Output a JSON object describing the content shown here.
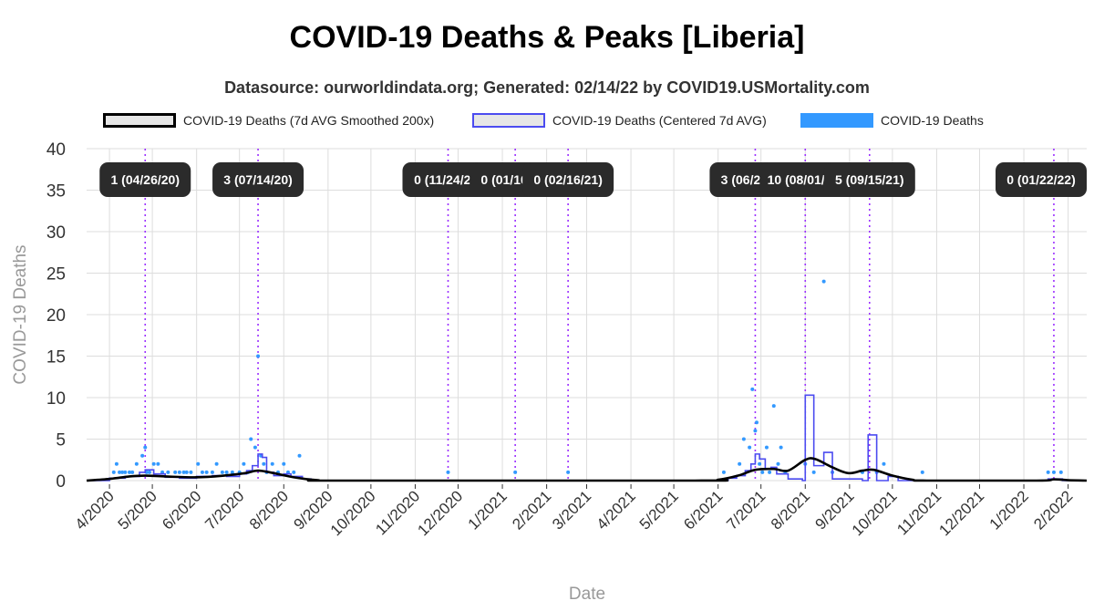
{
  "title": "COVID-19 Deaths & Peaks [Liberia]",
  "subtitle": "Datasource: ourworldindata.org; Generated: 02/14/22 by COVID19.USMortality.com",
  "legend": [
    {
      "label": "COVID-19 Deaths (7d AVG Smoothed 200x)",
      "swatch_fill": "#e6e6e6",
      "swatch_stroke": "#000000"
    },
    {
      "label": "COVID-19 Deaths (Centered 7d AVG)",
      "swatch_fill": "#e6e6e6",
      "swatch_stroke": "#4b4bf0"
    },
    {
      "label": "COVID-19 Deaths",
      "swatch_fill": "#3399ff",
      "swatch_stroke": "#3399ff"
    }
  ],
  "colors": {
    "smoothed": "#000000",
    "centered": "#4b4bf0",
    "deaths": "#3399ff",
    "peak_line": "#9b30ff",
    "grid": "#dddddd",
    "peak_label_bg": "#2b2b2b",
    "peak_label_text": "#ffffff"
  },
  "chart_data": {
    "type": "line",
    "title": "COVID-19 Deaths & Peaks [Liberia]",
    "xlabel": "Date",
    "ylabel": "COVID-19 Deaths",
    "x_range": [
      "2020-03-16",
      "2022-02-14"
    ],
    "ylim": [
      0,
      40
    ],
    "y_ticks": [
      0,
      5,
      10,
      15,
      20,
      25,
      30,
      35,
      40
    ],
    "x_ticks": [
      {
        "date": "2020-04-01",
        "label": "4/2020"
      },
      {
        "date": "2020-05-01",
        "label": "5/2020"
      },
      {
        "date": "2020-06-01",
        "label": "6/2020"
      },
      {
        "date": "2020-07-01",
        "label": "7/2020"
      },
      {
        "date": "2020-08-01",
        "label": "8/2020"
      },
      {
        "date": "2020-09-01",
        "label": "9/2020"
      },
      {
        "date": "2020-10-01",
        "label": "10/2020"
      },
      {
        "date": "2020-11-01",
        "label": "11/2020"
      },
      {
        "date": "2020-12-01",
        "label": "12/2020"
      },
      {
        "date": "2021-01-01",
        "label": "1/2021"
      },
      {
        "date": "2021-02-01",
        "label": "2/2021"
      },
      {
        "date": "2021-03-01",
        "label": "3/2021"
      },
      {
        "date": "2021-04-01",
        "label": "4/2021"
      },
      {
        "date": "2021-05-01",
        "label": "5/2021"
      },
      {
        "date": "2021-06-01",
        "label": "6/2021"
      },
      {
        "date": "2021-07-01",
        "label": "7/2021"
      },
      {
        "date": "2021-08-01",
        "label": "8/2021"
      },
      {
        "date": "2021-09-01",
        "label": "9/2021"
      },
      {
        "date": "2021-10-01",
        "label": "10/2021"
      },
      {
        "date": "2021-11-01",
        "label": "11/2021"
      },
      {
        "date": "2021-12-01",
        "label": "12/2021"
      },
      {
        "date": "2022-01-01",
        "label": "1/2022"
      },
      {
        "date": "2022-02-01",
        "label": "2/2022"
      }
    ],
    "grid": true,
    "legend_position": "top",
    "peaks": [
      {
        "date": "2020-04-26",
        "label": "1 (04/26/20)"
      },
      {
        "date": "2020-07-14",
        "label": "3 (07/14/20)"
      },
      {
        "date": "2020-11-24",
        "label": "0 (11/24/20)"
      },
      {
        "date": "2021-01-10",
        "label": "0 (01/10/21)"
      },
      {
        "date": "2021-02-16",
        "label": "0 (02/16/21)"
      },
      {
        "date": "2021-06-27",
        "label": "3 (06/27/21)"
      },
      {
        "date": "2021-08-01",
        "label": "10 (08/01/21)"
      },
      {
        "date": "2021-09-15",
        "label": "5 (09/15/21)"
      },
      {
        "date": "2022-01-22",
        "label": "0 (01/22/22)"
      }
    ],
    "series": [
      {
        "name": "COVID-19 Deaths",
        "style": "points",
        "points": [
          [
            "2020-04-04",
            1
          ],
          [
            "2020-04-06",
            2
          ],
          [
            "2020-04-08",
            1
          ],
          [
            "2020-04-10",
            1
          ],
          [
            "2020-04-12",
            1
          ],
          [
            "2020-04-15",
            1
          ],
          [
            "2020-04-17",
            1
          ],
          [
            "2020-04-20",
            2
          ],
          [
            "2020-04-24",
            3
          ],
          [
            "2020-04-26",
            4
          ],
          [
            "2020-04-27",
            1
          ],
          [
            "2020-04-29",
            1
          ],
          [
            "2020-05-02",
            2
          ],
          [
            "2020-05-05",
            2
          ],
          [
            "2020-05-08",
            1
          ],
          [
            "2020-05-12",
            1
          ],
          [
            "2020-05-17",
            1
          ],
          [
            "2020-05-20",
            1
          ],
          [
            "2020-05-23",
            1
          ],
          [
            "2020-05-25",
            1
          ],
          [
            "2020-05-28",
            1
          ],
          [
            "2020-06-02",
            2
          ],
          [
            "2020-06-05",
            1
          ],
          [
            "2020-06-08",
            1
          ],
          [
            "2020-06-12",
            1
          ],
          [
            "2020-06-15",
            2
          ],
          [
            "2020-06-19",
            1
          ],
          [
            "2020-06-22",
            1
          ],
          [
            "2020-06-26",
            1
          ],
          [
            "2020-07-01",
            1
          ],
          [
            "2020-07-04",
            2
          ],
          [
            "2020-07-07",
            1
          ],
          [
            "2020-07-09",
            5
          ],
          [
            "2020-07-12",
            4
          ],
          [
            "2020-07-14",
            15
          ],
          [
            "2020-07-16",
            3
          ],
          [
            "2020-07-18",
            2
          ],
          [
            "2020-07-20",
            1
          ],
          [
            "2020-07-24",
            2
          ],
          [
            "2020-07-28",
            1
          ],
          [
            "2020-08-01",
            2
          ],
          [
            "2020-08-04",
            1
          ],
          [
            "2020-08-08",
            1
          ],
          [
            "2020-08-12",
            3
          ],
          [
            "2020-11-24",
            1
          ],
          [
            "2021-01-10",
            1
          ],
          [
            "2021-02-16",
            1
          ],
          [
            "2021-06-05",
            1
          ],
          [
            "2021-06-16",
            2
          ],
          [
            "2021-06-19",
            5
          ],
          [
            "2021-06-23",
            4
          ],
          [
            "2021-06-25",
            11
          ],
          [
            "2021-06-27",
            6
          ],
          [
            "2021-06-28",
            7
          ],
          [
            "2021-06-30",
            2
          ],
          [
            "2021-07-02",
            1
          ],
          [
            "2021-07-05",
            4
          ],
          [
            "2021-07-07",
            1
          ],
          [
            "2021-07-10",
            9
          ],
          [
            "2021-07-13",
            2
          ],
          [
            "2021-07-15",
            4
          ],
          [
            "2021-07-18",
            1
          ],
          [
            "2021-08-01",
            2
          ],
          [
            "2021-08-07",
            1
          ],
          [
            "2021-08-14",
            24
          ],
          [
            "2021-08-20",
            1
          ],
          [
            "2021-09-10",
            1
          ],
          [
            "2021-09-20",
            1
          ],
          [
            "2021-09-25",
            2
          ],
          [
            "2021-10-22",
            1
          ],
          [
            "2022-01-18",
            1
          ],
          [
            "2022-01-22",
            1
          ],
          [
            "2022-01-27",
            1
          ]
        ]
      },
      {
        "name": "COVID-19 Deaths (Centered 7d AVG)",
        "style": "step",
        "points": [
          [
            "2020-03-16",
            0
          ],
          [
            "2020-04-01",
            0.3
          ],
          [
            "2020-04-12",
            0.5
          ],
          [
            "2020-04-22",
            1.0
          ],
          [
            "2020-04-26",
            1.3
          ],
          [
            "2020-05-02",
            0.8
          ],
          [
            "2020-05-10",
            0.4
          ],
          [
            "2020-05-20",
            0.3
          ],
          [
            "2020-06-01",
            0.5
          ],
          [
            "2020-06-12",
            0.6
          ],
          [
            "2020-06-22",
            0.5
          ],
          [
            "2020-07-01",
            0.8
          ],
          [
            "2020-07-06",
            1.2
          ],
          [
            "2020-07-10",
            1.8
          ],
          [
            "2020-07-14",
            3.2
          ],
          [
            "2020-07-17",
            2.8
          ],
          [
            "2020-07-20",
            1.0
          ],
          [
            "2020-07-25",
            0.6
          ],
          [
            "2020-08-01",
            0.8
          ],
          [
            "2020-08-06",
            0.5
          ],
          [
            "2020-08-14",
            0.2
          ],
          [
            "2020-08-20",
            0
          ],
          [
            "2021-06-01",
            0
          ],
          [
            "2021-06-08",
            0.3
          ],
          [
            "2021-06-14",
            0.6
          ],
          [
            "2021-06-20",
            1.2
          ],
          [
            "2021-06-24",
            2.0
          ],
          [
            "2021-06-27",
            3.2
          ],
          [
            "2021-06-30",
            2.6
          ],
          [
            "2021-07-04",
            1.4
          ],
          [
            "2021-07-08",
            1.6
          ],
          [
            "2021-07-12",
            0.8
          ],
          [
            "2021-07-16",
            0.8
          ],
          [
            "2021-07-20",
            0.2
          ],
          [
            "2021-07-30",
            0
          ],
          [
            "2021-08-01",
            10.3
          ],
          [
            "2021-08-07",
            1.8
          ],
          [
            "2021-08-14",
            3.4
          ],
          [
            "2021-08-20",
            0.2
          ],
          [
            "2021-09-10",
            0
          ],
          [
            "2021-09-14",
            5.5
          ],
          [
            "2021-09-20",
            0
          ],
          [
            "2021-09-28",
            0.5
          ],
          [
            "2021-10-05",
            0
          ],
          [
            "2022-01-18",
            0.2
          ],
          [
            "2022-01-28",
            0
          ],
          [
            "2022-02-14",
            0
          ]
        ]
      },
      {
        "name": "COVID-19 Deaths (7d AVG Smoothed 200x)",
        "style": "smooth",
        "points": [
          [
            "2020-03-16",
            0
          ],
          [
            "2020-04-01",
            0.2
          ],
          [
            "2020-04-15",
            0.5
          ],
          [
            "2020-04-26",
            0.6
          ],
          [
            "2020-05-10",
            0.5
          ],
          [
            "2020-06-01",
            0.4
          ],
          [
            "2020-06-20",
            0.6
          ],
          [
            "2020-07-05",
            0.9
          ],
          [
            "2020-07-14",
            1.2
          ],
          [
            "2020-07-25",
            0.9
          ],
          [
            "2020-08-08",
            0.4
          ],
          [
            "2020-08-25",
            0.05
          ],
          [
            "2020-09-10",
            0
          ],
          [
            "2021-05-15",
            0
          ],
          [
            "2021-06-01",
            0.1
          ],
          [
            "2021-06-15",
            0.6
          ],
          [
            "2021-06-27",
            1.3
          ],
          [
            "2021-07-10",
            1.4
          ],
          [
            "2021-07-20",
            1.2
          ],
          [
            "2021-08-01",
            2.5
          ],
          [
            "2021-08-08",
            2.6
          ],
          [
            "2021-08-20",
            1.6
          ],
          [
            "2021-08-31",
            0.9
          ],
          [
            "2021-09-10",
            1.2
          ],
          [
            "2021-09-18",
            1.3
          ],
          [
            "2021-10-01",
            0.6
          ],
          [
            "2021-10-15",
            0.1
          ],
          [
            "2021-10-25",
            0
          ],
          [
            "2022-01-10",
            0
          ],
          [
            "2022-01-22",
            0.15
          ],
          [
            "2022-02-01",
            0.05
          ],
          [
            "2022-02-14",
            0
          ]
        ]
      }
    ]
  }
}
